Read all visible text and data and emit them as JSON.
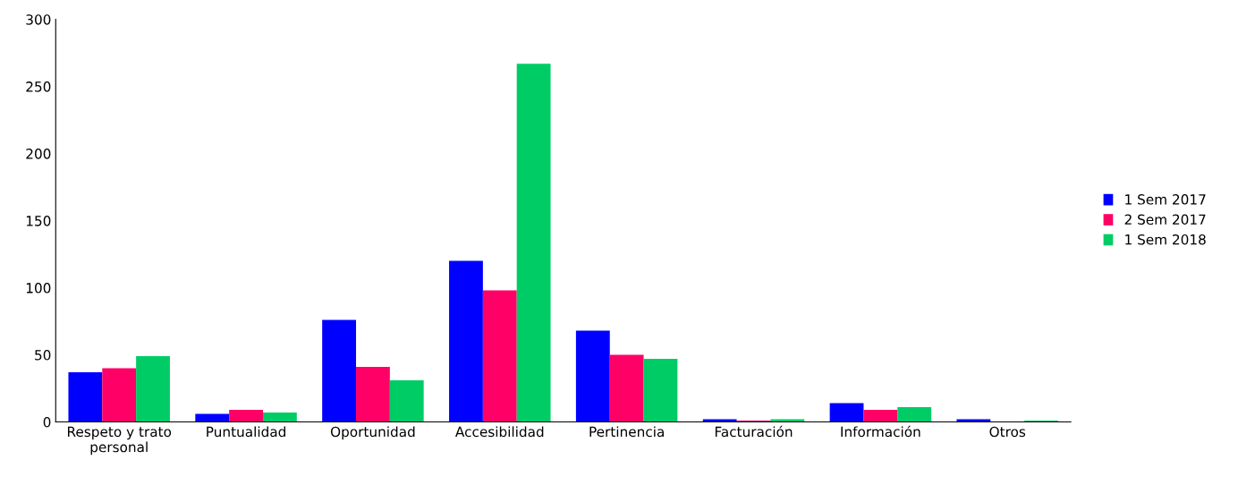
{
  "chart_data": {
    "type": "bar",
    "categories": [
      "Respeto y trato\npersonal",
      "Puntualidad",
      "Oportunidad",
      "Accesibilidad",
      "Pertinencia",
      "Facturación",
      "Información",
      "Otros"
    ],
    "series": [
      {
        "name": "1 Sem 2017",
        "color": "#0000ff",
        "values": [
          37,
          6,
          76,
          120,
          68,
          2,
          14,
          2
        ]
      },
      {
        "name": "2 Sem 2017",
        "color": "#ff0066",
        "values": [
          40,
          9,
          41,
          98,
          50,
          1,
          9,
          0
        ]
      },
      {
        "name": "1 Sem 2018",
        "color": "#00cc66",
        "values": [
          49,
          7,
          31,
          267,
          47,
          2,
          11,
          1
        ]
      }
    ],
    "ylim": [
      0,
      300
    ],
    "yticks": [
      0,
      50,
      100,
      150,
      200,
      250,
      300
    ],
    "grid": false,
    "legend": "right"
  }
}
